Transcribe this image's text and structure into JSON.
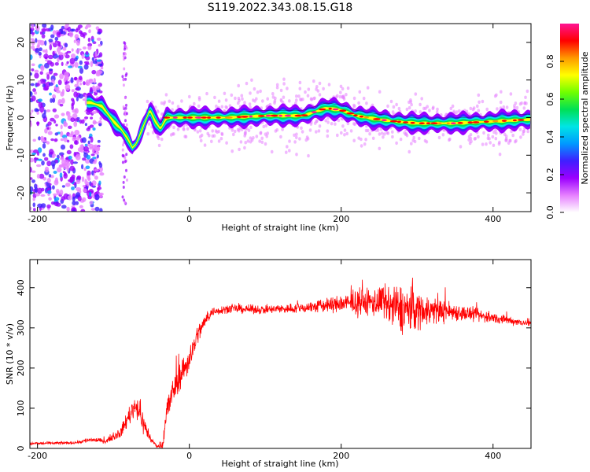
{
  "title": "S119.2022.343.08.15.G18",
  "chart_data": [
    {
      "type": "heatmap",
      "xlabel": "Height of straight line (km)",
      "ylabel": "Frequency (Hz)",
      "xlim": [
        -210,
        450
      ],
      "ylim": [
        -25,
        25
      ],
      "x_ticks": [
        -200,
        0,
        200,
        400
      ],
      "y_ticks": [
        -20,
        -10,
        0,
        10,
        20
      ],
      "colorbar": {
        "label": "Normalized spectral amplitude",
        "range": [
          0,
          1
        ],
        "ticks": [
          0.0,
          0.2,
          0.4,
          0.6,
          0.8
        ],
        "colors": [
          "#ffffff",
          "#e680ff",
          "#9b00ff",
          "#3f1fff",
          "#0099ff",
          "#00e5e5",
          "#00e055",
          "#70ff00",
          "#ffff00",
          "#ff9900",
          "#ff0000",
          "#ff1493"
        ]
      },
      "ridge": {
        "x": [
          -130,
          -115,
          -100,
          -90,
          -80,
          -75,
          -70,
          -60,
          -52,
          -45,
          -38,
          -30,
          0,
          50,
          100,
          150,
          180,
          200,
          220,
          250,
          270,
          300,
          350,
          400,
          450
        ],
        "y": [
          4,
          3,
          -1,
          -3,
          -6,
          -8,
          -7,
          -2,
          2,
          -1,
          -3,
          0,
          0,
          0,
          0.5,
          0.5,
          2.5,
          2,
          0.5,
          -0.5,
          -1,
          -1.5,
          -1.5,
          -1,
          -0.5
        ]
      }
    },
    {
      "type": "line",
      "xlabel": "Height of straight line (km)",
      "ylabel": "SNR (10 * v/v)",
      "xlim": [
        -210,
        450
      ],
      "ylim": [
        0,
        470
      ],
      "x_ticks": [
        -200,
        0,
        200,
        400
      ],
      "y_ticks": [
        0,
        100,
        200,
        300,
        400
      ],
      "series_color": "#ff0000",
      "envelope": {
        "x": [
          -210,
          -150,
          -130,
          -110,
          -90,
          -80,
          -70,
          -60,
          -50,
          -42,
          -35,
          -30,
          -20,
          -10,
          0,
          10,
          20,
          30,
          50,
          100,
          150,
          200,
          250,
          270,
          290,
          310,
          350,
          400,
          450
        ],
        "mean": [
          12,
          14,
          22,
          18,
          40,
          80,
          110,
          60,
          20,
          5,
          10,
          90,
          150,
          190,
          220,
          280,
          315,
          340,
          348,
          345,
          350,
          360,
          365,
          350,
          345,
          345,
          340,
          325,
          310
        ],
        "spread": [
          4,
          4,
          8,
          5,
          15,
          25,
          35,
          30,
          10,
          3,
          15,
          45,
          40,
          40,
          35,
          30,
          20,
          12,
          12,
          12,
          15,
          25,
          45,
          65,
          70,
          45,
          25,
          15,
          8
        ]
      }
    }
  ]
}
